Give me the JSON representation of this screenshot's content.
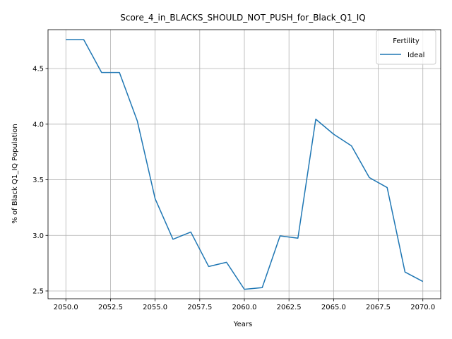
{
  "chart_data": {
    "type": "line",
    "title": "Score_4_in_BLACKS_SHOULD_NOT_PUSH_for_Black_Q1_IQ",
    "xlabel": "Years",
    "ylabel": "% of Black Q1_IQ Population",
    "xlim": [
      2049.0,
      2071.0
    ],
    "ylim": [
      2.43,
      4.85
    ],
    "x_ticks": [
      2050.0,
      2052.5,
      2055.0,
      2057.5,
      2060.0,
      2062.5,
      2065.0,
      2067.5,
      2070.0
    ],
    "x_tick_labels": [
      "2050.0",
      "2052.5",
      "2055.0",
      "2057.5",
      "2060.0",
      "2062.5",
      "2065.0",
      "2067.5",
      "2070.0"
    ],
    "y_ticks": [
      2.5,
      3.0,
      3.5,
      4.0,
      4.5
    ],
    "y_tick_labels": [
      "2.5",
      "3.0",
      "3.5",
      "4.0",
      "4.5"
    ],
    "grid": true,
    "legend": {
      "title": "Fertility",
      "placement": "top-right"
    },
    "series": [
      {
        "name": "Ideal",
        "color": "#1f77b4",
        "x": [
          2050,
          2051,
          2052,
          2053,
          2054,
          2055,
          2056,
          2057,
          2058,
          2059,
          2060,
          2061,
          2062,
          2063,
          2064,
          2065,
          2066,
          2067,
          2068,
          2069,
          2070
        ],
        "values": [
          4.76,
          4.76,
          4.465,
          4.465,
          4.03,
          3.33,
          2.965,
          3.03,
          2.72,
          2.758,
          2.515,
          2.53,
          2.995,
          2.975,
          4.045,
          3.91,
          3.805,
          3.52,
          3.43,
          2.67,
          2.585
        ]
      }
    ]
  }
}
